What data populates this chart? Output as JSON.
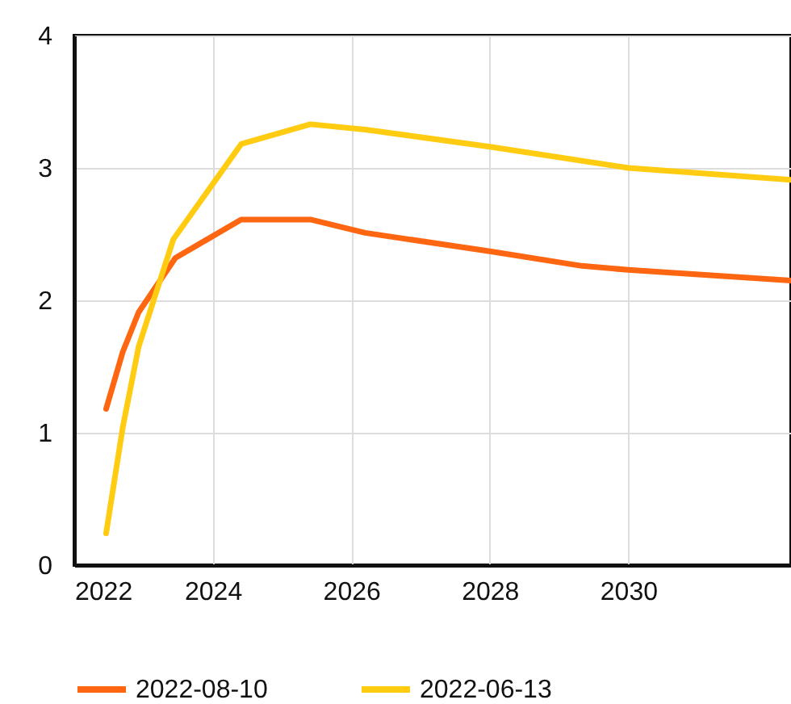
{
  "chart_data": {
    "type": "line",
    "xlim": [
      2022,
      2032.35
    ],
    "xticks": [
      2022,
      2024,
      2026,
      2028,
      2030
    ],
    "ylim": [
      0,
      4
    ],
    "yticks": [
      0,
      1,
      2,
      3,
      4
    ],
    "grid": true,
    "legend": "bottom",
    "line_style": "solid",
    "marker": "none",
    "series": [
      {
        "name": "2022-08-10",
        "color": "#ff6611",
        "x": [
          2022.46,
          2022.7,
          2022.93,
          2023.46,
          2024.41,
          2025.41,
          2026.2,
          2028,
          2029.33,
          2030,
          2032.35
        ],
        "values": [
          1.18,
          1.61,
          1.91,
          2.32,
          2.61,
          2.61,
          2.51,
          2.37,
          2.26,
          2.23,
          2.15
        ]
      },
      {
        "name": "2022-06-13",
        "color": "#ffcc11",
        "x": [
          2022.46,
          2022.7,
          2022.93,
          2023.43,
          2024.41,
          2025.41,
          2026.2,
          2028,
          2030,
          2032.35
        ],
        "values": [
          0.24,
          1.04,
          1.65,
          2.46,
          3.18,
          3.33,
          3.29,
          3.16,
          3.0,
          2.91
        ]
      }
    ]
  }
}
